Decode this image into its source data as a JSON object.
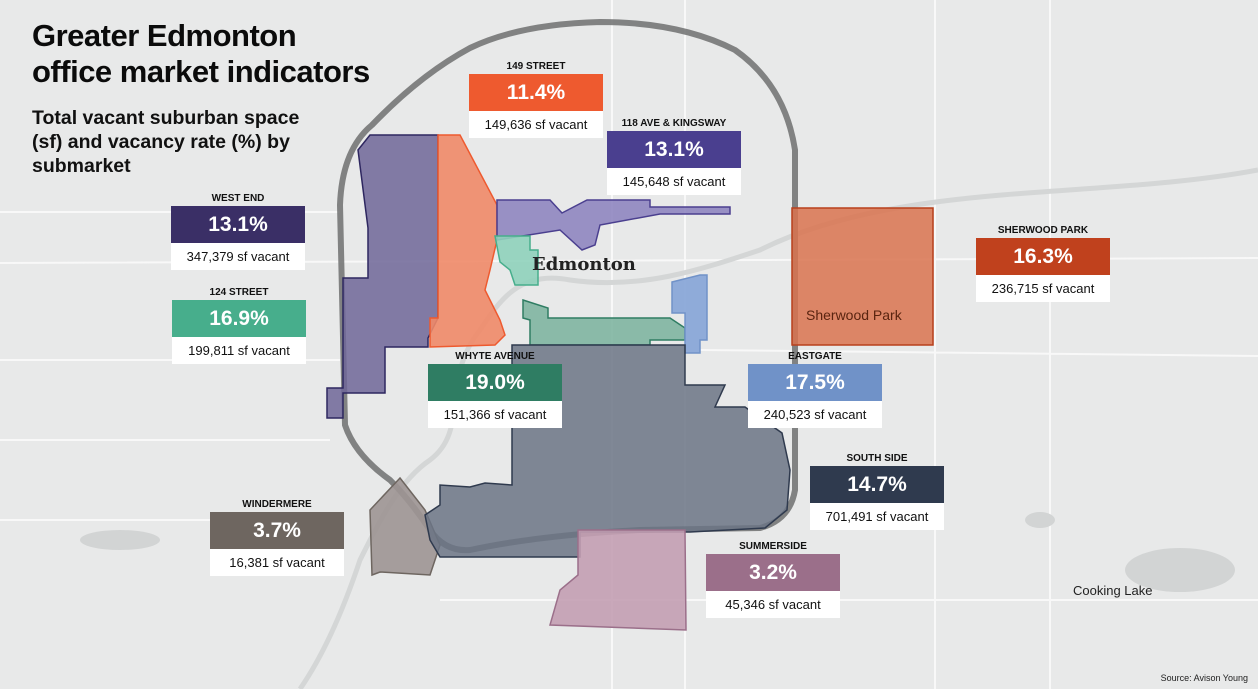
{
  "title": "Greater Edmonton office market indicators",
  "title_lines": [
    "Greater Edmonton",
    "office market indicators"
  ],
  "subtitle": "Total vacant suburban space (sf) and vacancy rate (%) by submarket",
  "places": {
    "city": "Edmonton",
    "sherwood": "Sherwood Park",
    "cooking_lake": "Cooking Lake"
  },
  "source": "Source: Avison Young",
  "submarkets": [
    {
      "name": "149 STREET",
      "rate": "11.4%",
      "vacant": "149,636 sf vacant",
      "color": "#ee5a2f"
    },
    {
      "name": "118 AVE & KINGSWAY",
      "rate": "13.1%",
      "vacant": "145,648 sf vacant",
      "color": "#4a3f8f"
    },
    {
      "name": "WEST END",
      "rate": "13.1%",
      "vacant": "347,379 sf vacant",
      "color": "#3a2f66"
    },
    {
      "name": "124 STREET",
      "rate": "16.9%",
      "vacant": "199,811 sf vacant",
      "color": "#47ae8c"
    },
    {
      "name": "WHYTE AVENUE",
      "rate": "19.0%",
      "vacant": "151,366 sf vacant",
      "color": "#2f7d63"
    },
    {
      "name": "EASTGATE",
      "rate": "17.5%",
      "vacant": "240,523 sf vacant",
      "color": "#7092c8"
    },
    {
      "name": "SHERWOOD PARK",
      "rate": "16.3%",
      "vacant": "236,715 sf vacant",
      "color": "#c0411d"
    },
    {
      "name": "SOUTH SIDE",
      "rate": "14.7%",
      "vacant": "701,491 sf vacant",
      "color": "#2f3a4e"
    },
    {
      "name": "WINDERMERE",
      "rate": "3.7%",
      "vacant": "16,381 sf vacant",
      "color": "#6e6660"
    },
    {
      "name": "SUMMERSIDE",
      "rate": "3.2%",
      "vacant": "45,346 sf vacant",
      "color": "#9b6f8a"
    }
  ]
}
